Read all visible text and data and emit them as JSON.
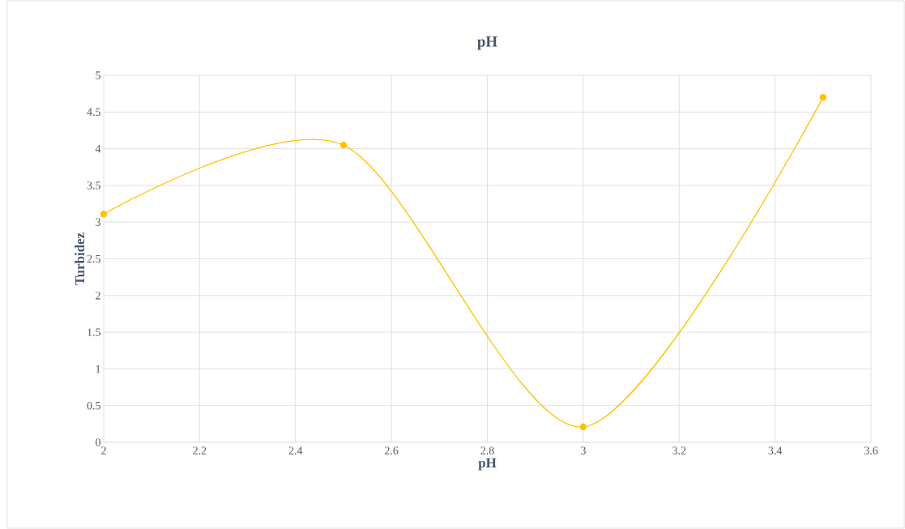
{
  "chart_data": {
    "type": "line",
    "title": "pH",
    "xlabel": "pH",
    "ylabel": "Turbidez",
    "x": [
      2,
      2.5,
      3,
      3.5
    ],
    "series": [
      {
        "color": "#ffc000",
        "values": [
          3.11,
          4.05,
          0.21,
          4.7
        ]
      }
    ],
    "xlim": [
      2,
      3.6
    ],
    "xticks": [
      2,
      2.2,
      2.4,
      2.6,
      2.8,
      3,
      3.2,
      3.4,
      3.6
    ],
    "ylim": [
      0,
      5
    ],
    "yticks": [
      0,
      0.5,
      1,
      1.5,
      2,
      2.5,
      3,
      3.5,
      4,
      4.5,
      5
    ],
    "grid": true,
    "marker": "circle",
    "line_style": "solid"
  }
}
